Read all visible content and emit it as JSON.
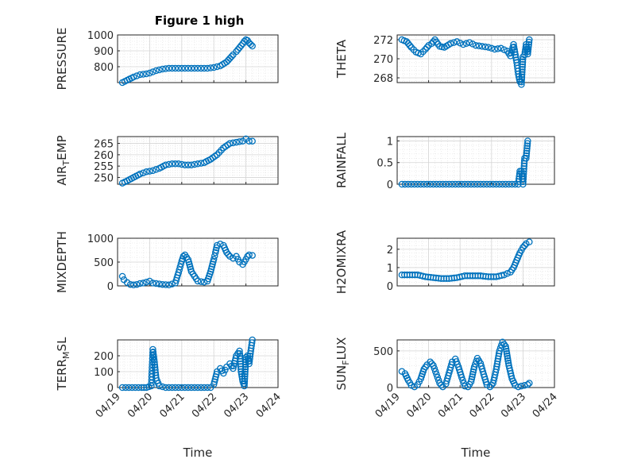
{
  "title": "Figure 1 high",
  "colors": {
    "series": "#0072BD"
  },
  "chart_data": [
    {
      "type": "scatter",
      "id": "pressure",
      "ylabel": "PRESSURE",
      "ylim": [
        700,
        1000
      ],
      "yticks": [
        800,
        900,
        1000
      ],
      "yticklabels": [
        "800",
        "900",
        "1000"
      ],
      "xlim": [
        0,
        5
      ],
      "xticks": [
        0,
        1,
        2,
        3,
        4,
        5
      ],
      "xticklabels": [
        "04/19",
        "04/20",
        "04/21",
        "04/22",
        "04/23",
        "04/24"
      ],
      "show_xticklabels": false,
      "xlabel": "",
      "grid": true,
      "x": [
        0.15,
        0.3,
        0.5,
        0.7,
        0.9,
        1.0,
        1.2,
        1.4,
        1.6,
        1.8,
        2.0,
        2.2,
        2.4,
        2.6,
        2.8,
        3.0,
        3.2,
        3.4,
        3.6,
        3.7,
        3.8,
        3.9,
        3.95,
        4.0,
        4.05,
        4.1,
        4.15,
        4.2
      ],
      "y": [
        700,
        715,
        735,
        750,
        755,
        760,
        775,
        785,
        790,
        790,
        790,
        790,
        790,
        790,
        790,
        795,
        805,
        830,
        875,
        895,
        920,
        945,
        960,
        970,
        965,
        950,
        940,
        930
      ]
    },
    {
      "type": "scatter",
      "id": "theta",
      "ylabel": "THETA",
      "ylim": [
        267.5,
        272.5
      ],
      "yticks": [
        268,
        270,
        272
      ],
      "yticklabels": [
        "268",
        "270",
        "272"
      ],
      "xlim": [
        0,
        5
      ],
      "xticks": [
        0,
        1,
        2,
        3,
        4,
        5
      ],
      "xticklabels": [
        "04/19",
        "04/20",
        "04/21",
        "04/22",
        "04/23",
        "04/24"
      ],
      "show_xticklabels": false,
      "xlabel": "",
      "grid": true,
      "x": [
        0.15,
        0.3,
        0.45,
        0.6,
        0.75,
        0.9,
        1.0,
        1.1,
        1.2,
        1.35,
        1.5,
        1.7,
        1.9,
        2.1,
        2.3,
        2.5,
        2.7,
        2.9,
        3.1,
        3.3,
        3.5,
        3.6,
        3.7,
        3.8,
        3.85,
        3.9,
        3.95,
        4.0,
        4.05,
        4.1,
        4.15,
        4.2
      ],
      "y": [
        272.0,
        271.8,
        271.2,
        270.7,
        270.5,
        271.0,
        271.4,
        271.6,
        272.0,
        271.3,
        271.2,
        271.6,
        271.8,
        271.5,
        271.7,
        271.4,
        271.3,
        271.2,
        271.0,
        271.1,
        270.8,
        270.3,
        271.5,
        269.6,
        268.4,
        267.6,
        267.3,
        270.2,
        270.4,
        271.5,
        270.5,
        272.0
      ]
    },
    {
      "type": "scatter",
      "id": "air_temp",
      "ylabel": "AIR",
      "ylabel_sub": "T",
      "ylabel_tail": "EMP",
      "ylim": [
        247,
        268
      ],
      "yticks": [
        250,
        255,
        260,
        265
      ],
      "yticklabels": [
        "250",
        "255",
        "260",
        "265"
      ],
      "xlim": [
        0,
        5
      ],
      "xticks": [
        0,
        1,
        2,
        3,
        4,
        5
      ],
      "xticklabels": [
        "04/19",
        "04/20",
        "04/21",
        "04/22",
        "04/23",
        "04/24"
      ],
      "show_xticklabels": false,
      "xlabel": "",
      "grid": true,
      "x": [
        0.15,
        0.3,
        0.5,
        0.7,
        0.9,
        1.1,
        1.3,
        1.5,
        1.7,
        1.9,
        2.1,
        2.3,
        2.5,
        2.7,
        2.9,
        3.1,
        3.3,
        3.5,
        3.7,
        3.9,
        4.0,
        4.1,
        4.2
      ],
      "y": [
        247.5,
        248.5,
        250.0,
        251.5,
        252.5,
        253.0,
        254.0,
        255.5,
        256.0,
        256.0,
        255.5,
        255.5,
        256.0,
        256.5,
        258.0,
        260.0,
        263.0,
        265.0,
        265.5,
        266.0,
        267.0,
        266.0,
        266.0
      ]
    },
    {
      "type": "scatter",
      "id": "rainfall",
      "ylabel": "RAINFALL",
      "ylim": [
        0,
        1.1
      ],
      "yticks": [
        0,
        0.5,
        1
      ],
      "yticklabels": [
        "0",
        "0.5",
        "1"
      ],
      "xlim": [
        0,
        5
      ],
      "xticks": [
        0,
        1,
        2,
        3,
        4,
        5
      ],
      "xticklabels": [
        "04/19",
        "04/20",
        "04/21",
        "04/22",
        "04/23",
        "04/24"
      ],
      "show_xticklabels": false,
      "xlabel": "",
      "grid": true,
      "x": [
        0.15,
        0.35,
        0.55,
        0.75,
        0.95,
        1.15,
        1.35,
        1.55,
        1.75,
        1.95,
        2.15,
        2.35,
        2.55,
        2.75,
        2.95,
        3.15,
        3.35,
        3.55,
        3.75,
        3.85,
        3.9,
        3.95,
        4.0,
        4.05,
        4.1,
        4.15
      ],
      "y": [
        0,
        0,
        0,
        0,
        0,
        0,
        0,
        0,
        0,
        0,
        0,
        0,
        0,
        0,
        0,
        0,
        0,
        0,
        0,
        0,
        0.3,
        0.3,
        0,
        0.6,
        0.6,
        1.0
      ]
    },
    {
      "type": "scatter",
      "id": "mixdepth",
      "ylabel": "MIXDEPTH",
      "ylim": [
        0,
        1000
      ],
      "yticks": [
        0,
        500,
        1000
      ],
      "yticklabels": [
        "0",
        "500",
        "1000"
      ],
      "xlim": [
        0,
        5
      ],
      "xticks": [
        0,
        1,
        2,
        3,
        4,
        5
      ],
      "xticklabels": [
        "04/19",
        "04/20",
        "04/21",
        "04/22",
        "04/23",
        "04/24"
      ],
      "show_xticklabels": false,
      "xlabel": "",
      "grid": true,
      "x": [
        0.15,
        0.2,
        0.3,
        0.4,
        0.5,
        0.6,
        0.7,
        0.8,
        0.9,
        1.0,
        1.1,
        1.2,
        1.4,
        1.6,
        1.8,
        1.9,
        2.0,
        2.05,
        2.1,
        2.2,
        2.3,
        2.5,
        2.7,
        2.8,
        2.9,
        3.0,
        3.05,
        3.1,
        3.2,
        3.3,
        3.4,
        3.5,
        3.6,
        3.7,
        3.8,
        3.9,
        4.0,
        4.05,
        4.1,
        4.2
      ],
      "y": [
        200,
        130,
        70,
        30,
        20,
        30,
        50,
        60,
        80,
        100,
        60,
        50,
        30,
        20,
        60,
        280,
        520,
        620,
        650,
        550,
        300,
        100,
        80,
        100,
        300,
        560,
        700,
        850,
        880,
        850,
        700,
        620,
        580,
        620,
        500,
        450,
        560,
        620,
        650,
        640
      ]
    },
    {
      "type": "scatter",
      "id": "h2omixra",
      "ylabel": "H2OMIXRA",
      "ylim": [
        0,
        2.6
      ],
      "yticks": [
        0,
        1,
        2
      ],
      "yticklabels": [
        "0",
        "1",
        "2"
      ],
      "xlim": [
        0,
        5
      ],
      "xticks": [
        0,
        1,
        2,
        3,
        4,
        5
      ],
      "xticklabels": [
        "04/19",
        "04/20",
        "04/21",
        "04/22",
        "04/23",
        "04/24"
      ],
      "show_xticklabels": false,
      "xlabel": "",
      "grid": true,
      "x": [
        0.15,
        0.4,
        0.65,
        0.9,
        1.15,
        1.4,
        1.65,
        1.9,
        2.15,
        2.4,
        2.65,
        2.9,
        3.15,
        3.4,
        3.6,
        3.7,
        3.8,
        3.9,
        4.0,
        4.1,
        4.2
      ],
      "y": [
        0.6,
        0.6,
        0.6,
        0.5,
        0.45,
        0.4,
        0.4,
        0.45,
        0.55,
        0.55,
        0.55,
        0.5,
        0.5,
        0.6,
        0.75,
        1.0,
        1.4,
        1.8,
        2.1,
        2.3,
        2.4
      ]
    },
    {
      "type": "scatter",
      "id": "terr_msl",
      "ylabel": "TERR",
      "ylabel_sub": "M",
      "ylabel_tail": "SL",
      "ylim": [
        0,
        300
      ],
      "yticks": [
        0,
        100,
        200
      ],
      "yticklabels": [
        "0",
        "100",
        "200"
      ],
      "xlim": [
        0,
        5
      ],
      "xticks": [
        0,
        1,
        2,
        3,
        4,
        5
      ],
      "xticklabels": [
        "04/19",
        "04/20",
        "04/21",
        "04/22",
        "04/23",
        "04/24"
      ],
      "show_xticklabels": true,
      "xlabel": "Time",
      "grid": true,
      "x": [
        0.15,
        0.35,
        0.55,
        0.75,
        0.9,
        1.05,
        1.1,
        1.15,
        1.2,
        1.3,
        1.5,
        1.7,
        1.9,
        2.1,
        2.3,
        2.5,
        2.7,
        2.9,
        3.0,
        3.1,
        3.2,
        3.3,
        3.4,
        3.5,
        3.6,
        3.7,
        3.8,
        3.85,
        3.9,
        3.95,
        4.0,
        4.05,
        4.1,
        4.15,
        4.2
      ],
      "y": [
        0,
        0,
        0,
        0,
        0,
        10,
        240,
        160,
        60,
        10,
        0,
        0,
        0,
        0,
        0,
        0,
        0,
        0,
        20,
        100,
        120,
        90,
        130,
        150,
        120,
        200,
        230,
        100,
        40,
        10,
        190,
        200,
        150,
        230,
        300
      ]
    },
    {
      "type": "scatter",
      "id": "sun_flux",
      "ylabel": "SUN",
      "ylabel_sub": "F",
      "ylabel_tail": "LUX",
      "ylim": [
        0,
        650
      ],
      "yticks": [
        0,
        500
      ],
      "yticklabels": [
        "0",
        "500"
      ],
      "xlim": [
        0,
        5
      ],
      "xticks": [
        0,
        1,
        2,
        3,
        4,
        5
      ],
      "xticklabels": [
        "04/19",
        "04/20",
        "04/21",
        "04/22",
        "04/23",
        "04/24"
      ],
      "show_xticklabels": true,
      "xlabel": "Time",
      "grid": true,
      "x": [
        0.15,
        0.25,
        0.35,
        0.45,
        0.55,
        0.65,
        0.75,
        0.85,
        0.95,
        1.05,
        1.15,
        1.25,
        1.35,
        1.45,
        1.55,
        1.65,
        1.75,
        1.85,
        1.95,
        2.05,
        2.15,
        2.25,
        2.35,
        2.45,
        2.55,
        2.65,
        2.75,
        2.85,
        2.95,
        3.05,
        3.15,
        3.25,
        3.35,
        3.45,
        3.55,
        3.65,
        3.75,
        3.85,
        3.95,
        4.05,
        4.15,
        4.2
      ],
      "y": [
        220,
        190,
        100,
        30,
        10,
        40,
        120,
        250,
        310,
        350,
        300,
        180,
        60,
        10,
        50,
        200,
        350,
        390,
        280,
        140,
        20,
        10,
        80,
        280,
        400,
        330,
        180,
        40,
        10,
        60,
        250,
        500,
        620,
        560,
        300,
        120,
        30,
        10,
        20,
        30,
        40,
        60
      ]
    }
  ]
}
